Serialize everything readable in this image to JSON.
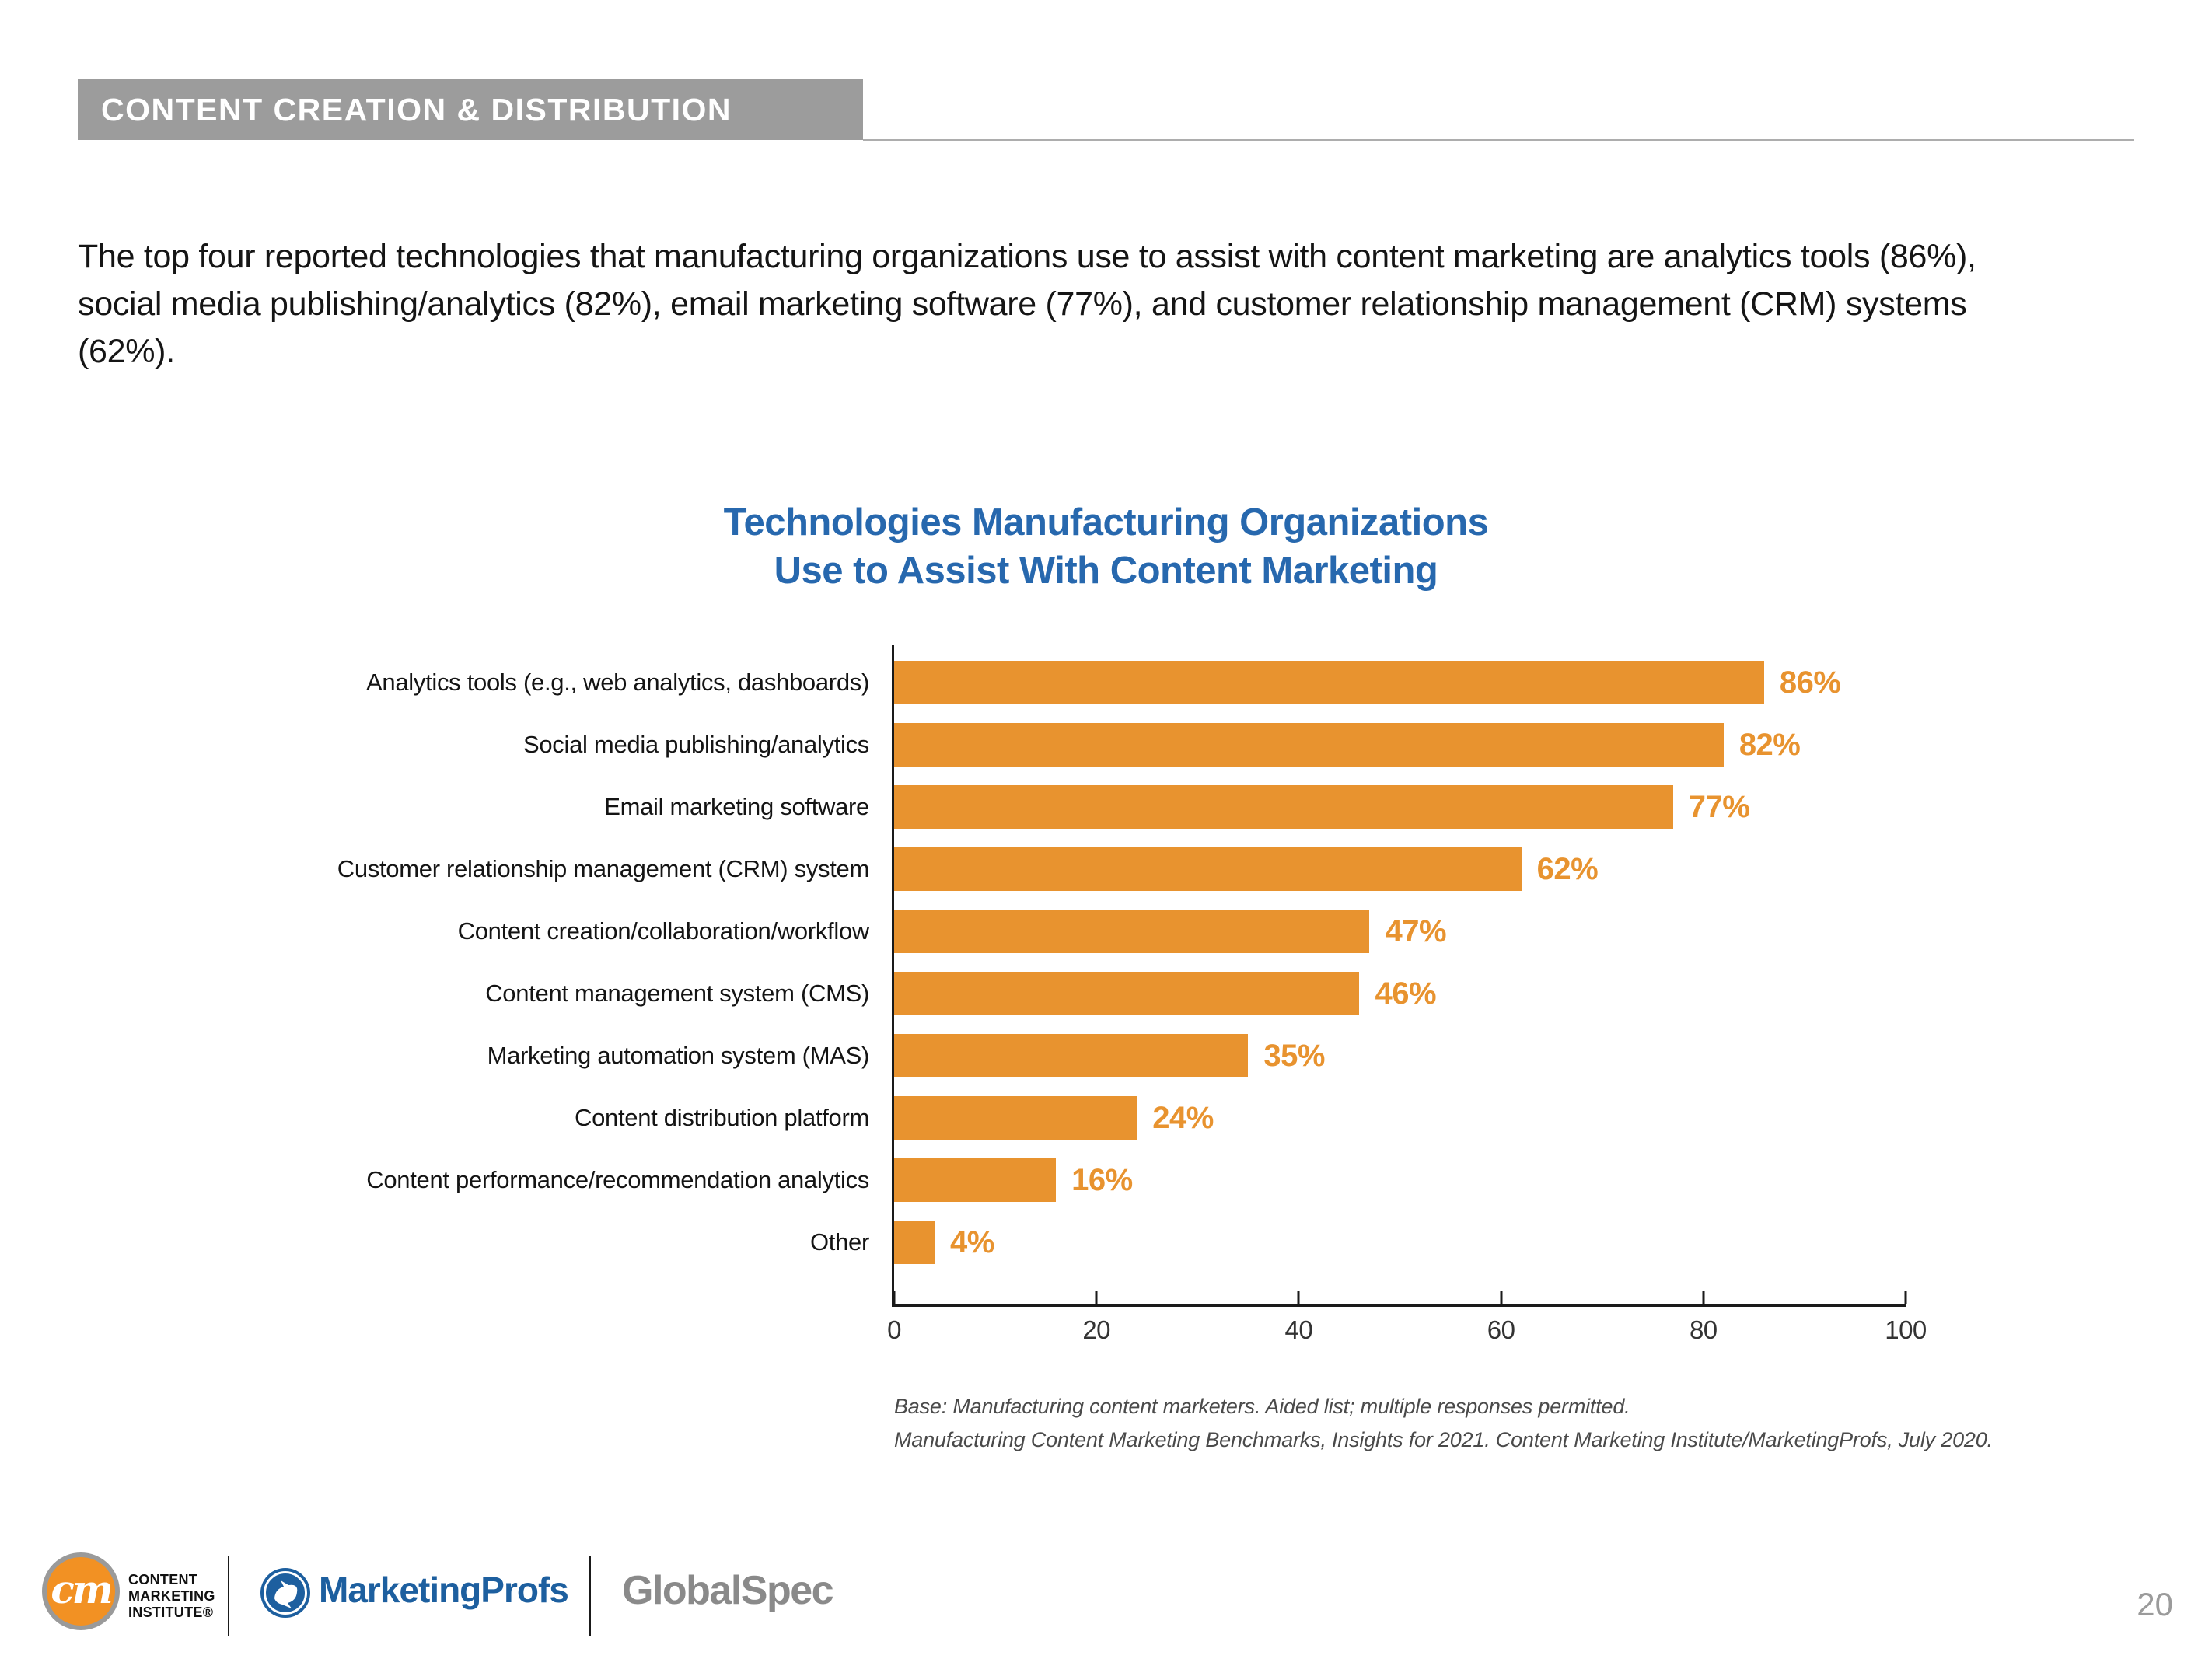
{
  "header": {
    "title": "CONTENT CREATION & DISTRIBUTION"
  },
  "intro": {
    "text": "The top four reported technologies that manufacturing organizations use to assist with content marketing are analytics tools (86%), social media publishing/analytics (82%), email marketing software (77%), and customer relationship management (CRM) systems (62%)."
  },
  "chart_data": {
    "type": "bar",
    "orientation": "horizontal",
    "title": "Technologies Manufacturing Organizations Use to Assist With Content Marketing",
    "title_lines": [
      "Technologies Manufacturing Organizations",
      "Use to Assist With Content Marketing"
    ],
    "categories": [
      "Analytics tools (e.g., web analytics, dashboards)",
      "Social media publishing/analytics",
      "Email marketing software",
      "Customer relationship management (CRM) system",
      "Content creation/collaboration/workflow",
      "Content management system (CMS)",
      "Marketing automation system (MAS)",
      "Content distribution platform",
      "Content performance/recommendation analytics",
      "Other"
    ],
    "values": [
      86,
      82,
      77,
      62,
      47,
      46,
      35,
      24,
      16,
      4
    ],
    "value_label_suffix": "%",
    "xlim": [
      0,
      100
    ],
    "x_ticks": [
      "0",
      "20",
      "40",
      "60",
      "80",
      "100"
    ],
    "grid": false,
    "legend": false,
    "colors": {
      "bar": "#E8932F",
      "value_label": "#E8932F",
      "title": "#2768AE",
      "axis": "#1A1A1A"
    }
  },
  "footnotes": {
    "line1": "Base: Manufacturing content marketers. Aided list; multiple responses permitted.",
    "line2": "Manufacturing Content Marketing Benchmarks, Insights for 2021. Content Marketing Institute/MarketingProfs, July 2020."
  },
  "footer": {
    "cmi_logo": {
      "monogram": "cm",
      "line1": "CONTENT",
      "line2": "MARKETING",
      "line3": "INSTITUTE®"
    },
    "marketingprofs_label": "MarketingProfs",
    "globalspec_label": "GlobalSpec",
    "page_number": "20"
  }
}
